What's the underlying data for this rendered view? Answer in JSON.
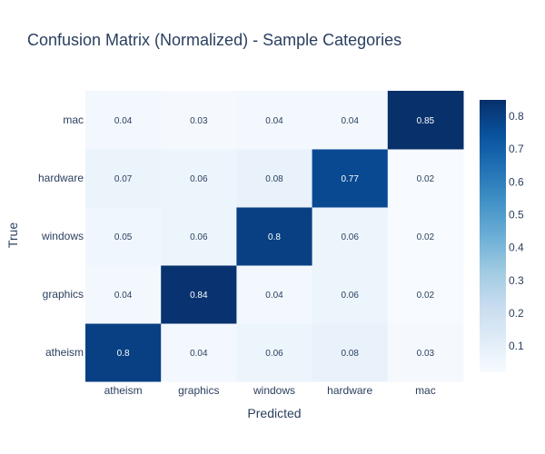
{
  "chart_data": {
    "type": "heatmap",
    "title": "Confusion Matrix (Normalized) - Sample Categories",
    "xlabel": "Predicted",
    "ylabel": "True",
    "x_categories": [
      "atheism",
      "graphics",
      "windows",
      "hardware",
      "mac"
    ],
    "y_categories": [
      "atheism",
      "graphics",
      "windows",
      "hardware",
      "mac"
    ],
    "values": [
      [
        0.8,
        0.04,
        0.06,
        0.08,
        0.03
      ],
      [
        0.04,
        0.84,
        0.04,
        0.06,
        0.02
      ],
      [
        0.05,
        0.06,
        0.8,
        0.06,
        0.02
      ],
      [
        0.07,
        0.06,
        0.08,
        0.77,
        0.02
      ],
      [
        0.04,
        0.03,
        0.04,
        0.04,
        0.85
      ]
    ],
    "colorscale": "Blues",
    "colorbar": {
      "range": [
        0.02,
        0.85
      ],
      "ticks": [
        "0.1",
        "0.2",
        "0.3",
        "0.4",
        "0.5",
        "0.6",
        "0.7",
        "0.8"
      ]
    },
    "colors": {
      "text_dark": "#2a3f5f",
      "text_light": "#ffffff"
    }
  }
}
